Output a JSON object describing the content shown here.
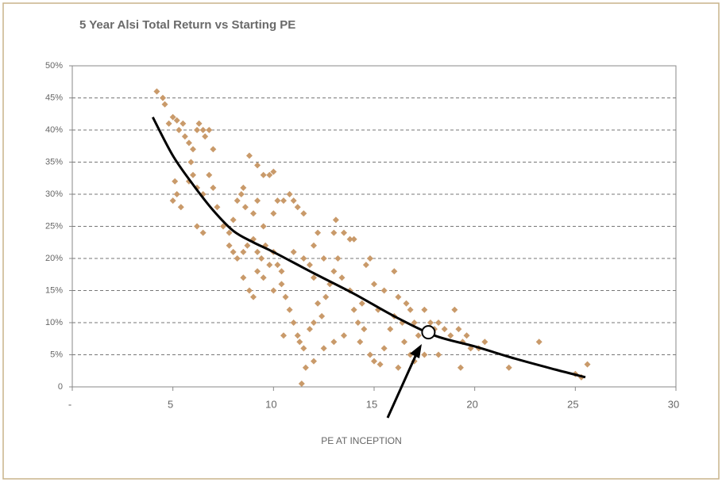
{
  "chart_data": {
    "type": "scatter",
    "title": "5 Year Alsi Total Return vs Starting PE",
    "x_label": "PE AT INCEPTION",
    "xlim": [
      0,
      30
    ],
    "xticks": [
      {
        "value": 0,
        "label": "-"
      },
      5,
      10,
      15,
      20,
      25,
      30
    ],
    "ylim": [
      0,
      50
    ],
    "yticks": [
      0,
      {
        "value": 5,
        "label": "5%"
      },
      {
        "value": 10,
        "label": "10%"
      },
      {
        "value": 15,
        "label": "15%"
      },
      {
        "value": 20,
        "label": "20%"
      },
      {
        "value": 25,
        "label": "25%"
      },
      {
        "value": 30,
        "label": "30%"
      },
      {
        "value": 35,
        "label": "35%"
      },
      {
        "value": 40,
        "label": "40%"
      },
      {
        "value": 45,
        "label": "45%"
      },
      {
        "value": 50,
        "label": "50%"
      }
    ],
    "grid": true,
    "points": {
      "color": "#c99a6a",
      "x": [
        4.2,
        4.5,
        4.6,
        4.8,
        5,
        5.2,
        5.3,
        5.5,
        5.6,
        5.8,
        6,
        5.9,
        6.2,
        6.3,
        6.5,
        6.8,
        7,
        6.6,
        5.1,
        5.2,
        5.4,
        5,
        5.8,
        6,
        6.2,
        6.5,
        6.8,
        7,
        7.2,
        6.2,
        6.5,
        7.5,
        7.8,
        8,
        8.2,
        8.5,
        8.8,
        9.2,
        9.5,
        9.8,
        10,
        8.4,
        8.6,
        9,
        9.2,
        9.5,
        10,
        10.2,
        10.5,
        10.8,
        11,
        11.2,
        11.5,
        7.8,
        8,
        8.2,
        8.5,
        8.7,
        9,
        9.2,
        9.4,
        9.6,
        9.8,
        10,
        10.2,
        10.4,
        8.5,
        8.8,
        9,
        9.2,
        9.5,
        10,
        10.4,
        10.6,
        10.8,
        11,
        11.2,
        11.3,
        11.5,
        11.6,
        11.4,
        11.8,
        12,
        12.2,
        12.4,
        12.6,
        12.8,
        13,
        13.2,
        13.4,
        13,
        13.1,
        13.5,
        13.8,
        14,
        12,
        12.2,
        12.5,
        12,
        11.5,
        11,
        11.8,
        13.8,
        14,
        14.2,
        14.4,
        14.6,
        14.8,
        15,
        15.2,
        14.5,
        14.3,
        14.8,
        15,
        15.3,
        15.5,
        15.8,
        16,
        16.2,
        16.4,
        16.6,
        16.8,
        17,
        17.2,
        16.5,
        16.8,
        17,
        16.2,
        17.5,
        17.8,
        18,
        18.2,
        18.5,
        18.8,
        19,
        19.2,
        19.4,
        19.6,
        19.8,
        20.2,
        20.5,
        19.3,
        21.7,
        23.2,
        25,
        25.3,
        25.6,
        12.5,
        13,
        13.5,
        12,
        10.5,
        15.5,
        16,
        17.5,
        18.2
      ],
      "y": [
        46,
        45,
        44,
        41,
        42,
        41.5,
        40,
        41,
        39,
        38,
        37,
        35,
        40,
        41,
        40,
        40,
        37,
        39,
        32,
        30,
        28,
        29,
        32,
        33,
        31,
        30,
        33,
        31,
        28,
        25,
        24,
        25,
        24,
        26,
        29,
        31,
        36,
        34.5,
        33,
        33,
        33.5,
        30,
        28,
        27,
        29,
        25,
        27,
        29,
        29,
        30,
        29,
        28,
        27,
        22,
        21,
        20,
        21,
        22,
        23,
        21,
        20,
        22,
        19,
        21,
        19,
        18,
        17,
        15,
        14,
        18,
        17,
        15,
        16,
        14,
        12,
        10,
        8,
        7,
        6,
        3,
        0.5,
        9,
        10,
        13,
        11,
        14,
        16,
        18,
        20,
        17,
        24,
        26,
        24,
        23,
        23,
        22,
        24,
        20,
        17,
        20,
        21,
        19,
        15,
        12,
        10,
        13,
        19,
        20,
        16,
        12,
        9,
        7,
        5,
        4,
        3.5,
        6,
        9,
        11,
        14,
        10,
        13,
        12,
        10,
        8,
        7,
        5,
        4,
        3,
        12,
        10,
        9,
        10,
        9,
        8,
        12,
        9,
        7,
        8,
        6,
        6,
        7,
        3,
        3,
        7,
        2,
        1.5,
        3.5,
        6,
        7,
        8,
        4,
        8,
        15,
        18,
        5,
        5
      ]
    },
    "fit": {
      "color": "#000000",
      "x": [
        4,
        5,
        6,
        7,
        8,
        9,
        10,
        12,
        14,
        16,
        18,
        20,
        22,
        24,
        25.5
      ],
      "y": [
        42,
        36,
        31.5,
        27.5,
        24.3,
        22.5,
        21,
        17.7,
        14.5,
        11,
        8,
        6.3,
        4.4,
        2.7,
        1.5
      ]
    },
    "highlight": {
      "x": 17.7,
      "y": 8.5
    }
  }
}
